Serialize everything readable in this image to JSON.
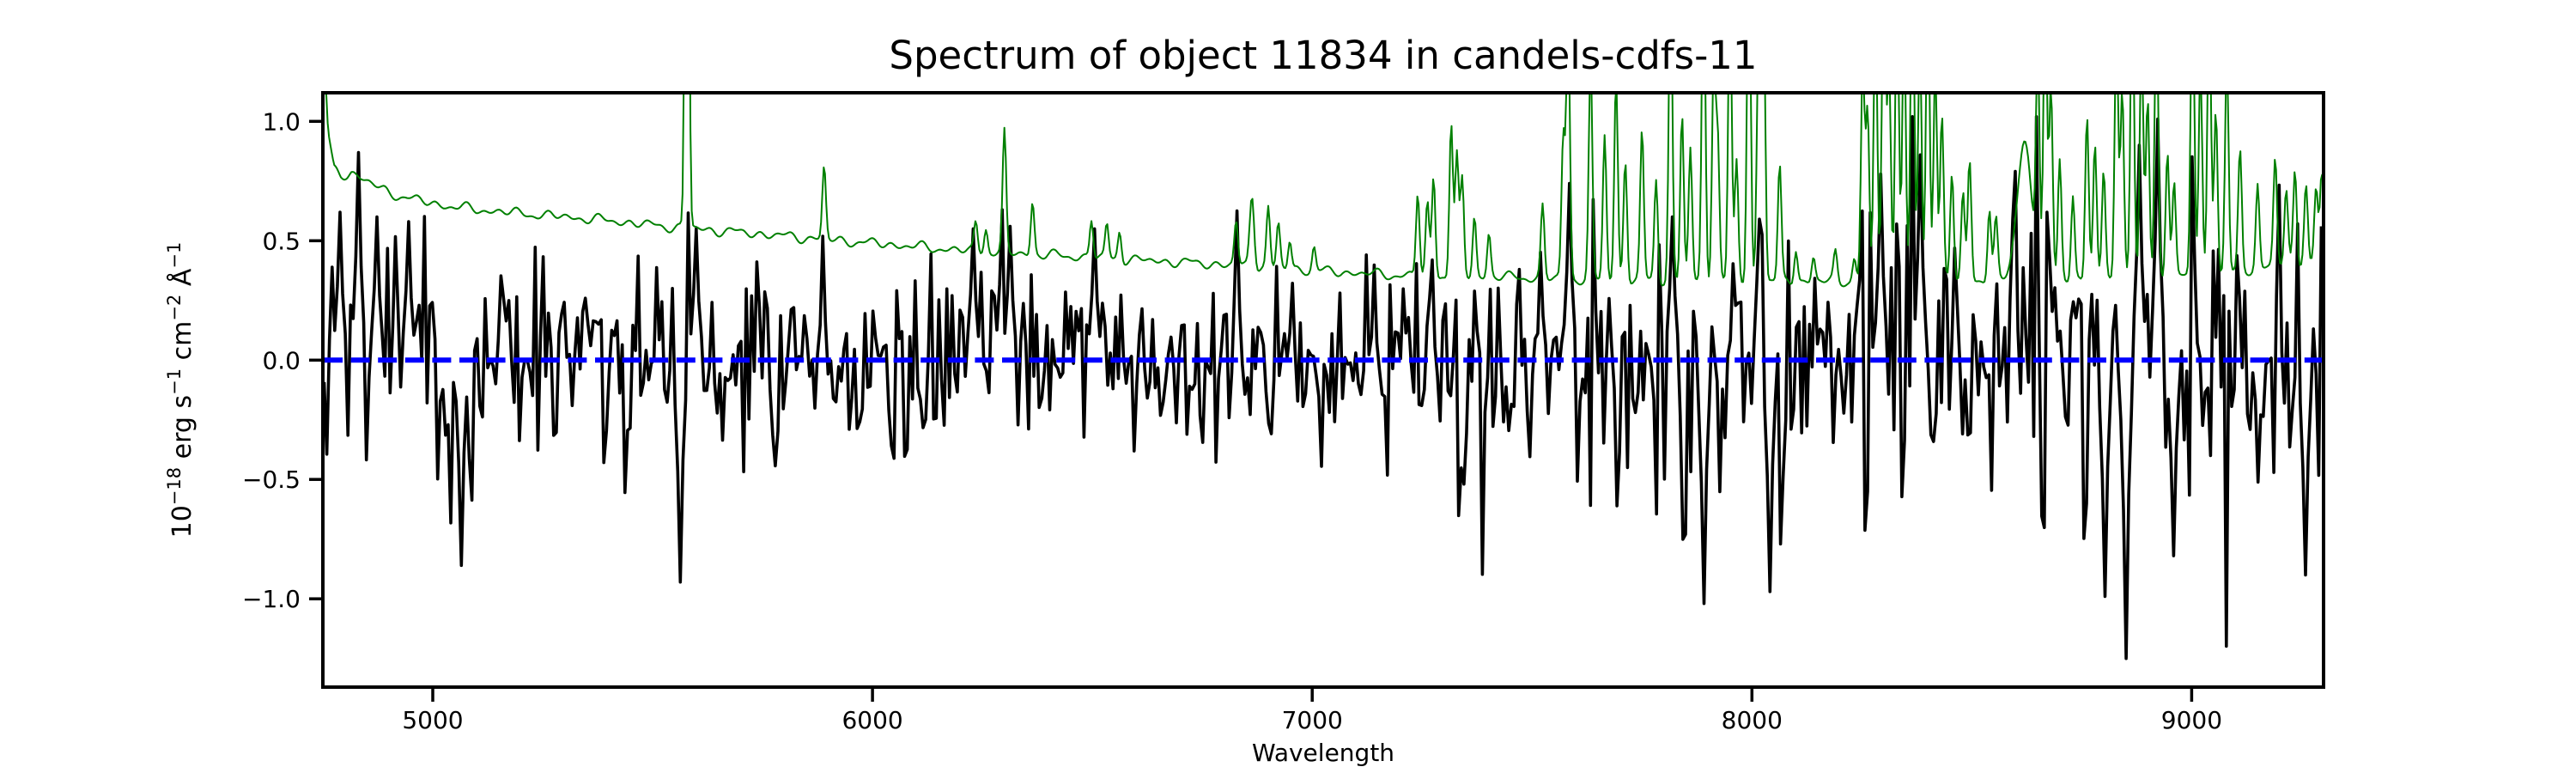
{
  "chart_data": {
    "type": "line",
    "title": "Spectrum of object 11834 in candels-cdfs-11",
    "xlabel": "Wavelength",
    "ylabel": "10−18 erg s−1 cm−2 Å−1",
    "ylabel_segments": [
      {
        "t": "10",
        "sup": false
      },
      {
        "t": "−18",
        "sup": true
      },
      {
        "t": " erg s",
        "sup": false
      },
      {
        "t": "−1",
        "sup": true
      },
      {
        "t": " cm",
        "sup": false
      },
      {
        "t": "−2",
        "sup": true
      },
      {
        "t": " Å",
        "sup": false
      },
      {
        "t": "−1",
        "sup": true
      }
    ],
    "xlim": [
      4750,
      9300
    ],
    "ylim": [
      -1.37,
      1.12
    ],
    "xticks": [
      5000,
      6000,
      7000,
      8000,
      9000
    ],
    "xtick_labels": [
      "5000",
      "6000",
      "7000",
      "8000",
      "9000"
    ],
    "yticks": [
      1.0,
      0.5,
      0.0,
      -0.5,
      -1.0
    ],
    "ytick_labels": [
      "1.0",
      "0.5",
      "0.0",
      "−0.5",
      "−1.0"
    ],
    "grid": false,
    "legend": null,
    "background": "#ffffff",
    "series": [
      {
        "name": "object-flux-spectrum",
        "role": "noisy flux spectrum of object 11834 (zero-mean noise, amplitude grows toward red / sky lines)",
        "color": "#000000",
        "line_width": 3.6,
        "sample_step_angstrom": 6,
        "noise_seed": 20241834,
        "mean": 0.0,
        "noise_sigma_anchors": [
          [
            4755,
            0.27
          ],
          [
            5000,
            0.24
          ],
          [
            5300,
            0.22
          ],
          [
            5600,
            0.22
          ],
          [
            6000,
            0.21
          ],
          [
            6400,
            0.19
          ],
          [
            6800,
            0.17
          ],
          [
            7100,
            0.16
          ],
          [
            7300,
            0.2
          ],
          [
            7600,
            0.22
          ],
          [
            8000,
            0.24
          ],
          [
            8300,
            0.26
          ],
          [
            8600,
            0.26
          ],
          [
            8900,
            0.3
          ],
          [
            9100,
            0.28
          ],
          [
            9300,
            0.26
          ]
        ],
        "sky_coupling": 0.9,
        "clamp": [
          -1.28,
          1.02
        ],
        "pinned_points": [
          [
            4790,
            0.62
          ],
          [
            4830,
            0.87
          ],
          [
            4872,
            0.6
          ],
          [
            4942,
            0.58
          ],
          [
            5065,
            -0.86
          ],
          [
            5562,
            -0.93
          ],
          [
            5600,
            0.55
          ],
          [
            6230,
            0.55
          ],
          [
            6292,
            0.63
          ],
          [
            6312,
            0.56
          ],
          [
            6505,
            0.55
          ],
          [
            7583,
            0.74
          ],
          [
            7820,
            0.6
          ],
          [
            7893,
            -1.02
          ],
          [
            8040,
            -0.97
          ],
          [
            8290,
            0.78
          ],
          [
            8382,
            0.86
          ],
          [
            8803,
            -0.99
          ],
          [
            8851,
            -1.25
          ],
          [
            8880,
            0.9
          ],
          [
            8925,
            1.01
          ],
          [
            8960,
            -0.82
          ],
          [
            9260,
            -0.9
          ]
        ]
      },
      {
        "name": "sky-noise-spectrum",
        "role": "sky / error spectrum: smooth declining continuum plus telluric & OH emission-line spikes (clipped at top of axes)",
        "color": "#008000",
        "line_width": 2,
        "sample_step_angstrom": 3,
        "wiggle_seed": 7,
        "wiggle": {
          "amplitude": 0.009,
          "periods": [
            37,
            61,
            103
          ]
        },
        "continuum_anchors": [
          [
            4750,
            1.4
          ],
          [
            4762,
            0.95
          ],
          [
            4775,
            0.8
          ],
          [
            4790,
            0.77
          ],
          [
            4815,
            0.79
          ],
          [
            4830,
            0.77
          ],
          [
            4900,
            0.7
          ],
          [
            5000,
            0.655
          ],
          [
            5100,
            0.63
          ],
          [
            5200,
            0.615
          ],
          [
            5300,
            0.6
          ],
          [
            5400,
            0.585
          ],
          [
            5500,
            0.565
          ],
          [
            5600,
            0.55
          ],
          [
            5700,
            0.535
          ],
          [
            5800,
            0.52
          ],
          [
            5900,
            0.505
          ],
          [
            6000,
            0.49
          ],
          [
            6100,
            0.475
          ],
          [
            6200,
            0.46
          ],
          [
            6300,
            0.45
          ],
          [
            6400,
            0.44
          ],
          [
            6500,
            0.43
          ],
          [
            6600,
            0.42
          ],
          [
            6700,
            0.41
          ],
          [
            6800,
            0.4
          ],
          [
            6900,
            0.39
          ],
          [
            7000,
            0.375
          ],
          [
            7100,
            0.365
          ],
          [
            7200,
            0.355
          ],
          [
            7400,
            0.35
          ],
          [
            7600,
            0.34
          ],
          [
            7800,
            0.335
          ],
          [
            8000,
            0.33
          ],
          [
            8200,
            0.33
          ],
          [
            8400,
            0.335
          ],
          [
            8600,
            0.34
          ],
          [
            8800,
            0.34
          ],
          [
            9000,
            0.35
          ],
          [
            9100,
            0.37
          ],
          [
            9200,
            0.4
          ],
          [
            9300,
            0.42
          ]
        ],
        "emission_spikes": [
          [
            5578,
            3.0,
            4
          ],
          [
            5890,
            0.3,
            4
          ],
          [
            6235,
            0.12,
            4
          ],
          [
            6258,
            0.1,
            4
          ],
          [
            6300,
            0.5,
            4
          ],
          [
            6364,
            0.22,
            4
          ],
          [
            6498,
            0.16,
            4
          ],
          [
            6533,
            0.14,
            4
          ],
          [
            6562,
            0.12,
            4
          ],
          [
            6827,
            0.18,
            4
          ],
          [
            6863,
            0.3,
            5
          ],
          [
            6900,
            0.25,
            4
          ],
          [
            6923,
            0.18,
            4
          ],
          [
            6949,
            0.12,
            4
          ],
          [
            7004,
            0.1,
            4
          ],
          [
            7240,
            0.35,
            4
          ],
          [
            7262,
            0.3,
            4
          ],
          [
            7276,
            0.42,
            4
          ],
          [
            7316,
            0.65,
            4
          ],
          [
            7329,
            0.5,
            4
          ],
          [
            7341,
            0.4,
            4
          ],
          [
            7369,
            0.25,
            4
          ],
          [
            7402,
            0.18,
            4
          ],
          [
            7524,
            0.3,
            4
          ],
          [
            7571,
            0.6,
            4
          ],
          [
            7582,
            1.1,
            4
          ],
          [
            7633,
            0.9,
            4
          ],
          [
            7665,
            0.6,
            4
          ],
          [
            7691,
            0.85,
            4
          ],
          [
            7712,
            0.5,
            4
          ],
          [
            7750,
            0.62,
            4
          ],
          [
            7782,
            0.42,
            4
          ],
          [
            7815,
            1.3,
            4
          ],
          [
            7841,
            0.7,
            4
          ],
          [
            7860,
            0.55,
            4
          ],
          [
            7890,
            1.4,
            4
          ],
          [
            7913,
            0.9,
            4
          ],
          [
            7922,
            0.6,
            4
          ],
          [
            7950,
            1.2,
            4
          ],
          [
            7965,
            0.5,
            4
          ],
          [
            7993,
            1.5,
            4
          ],
          [
            8015,
            1.0,
            4
          ],
          [
            8026,
            1.3,
            4
          ],
          [
            8063,
            0.48,
            4
          ],
          [
            8100,
            0.14,
            4
          ],
          [
            8140,
            0.1,
            4
          ],
          [
            8190,
            0.12,
            4
          ],
          [
            8233,
            0.1,
            4
          ],
          [
            8252,
            0.9,
            4
          ],
          [
            8263,
            0.7,
            4
          ],
          [
            8281,
            1.2,
            4
          ],
          [
            8300,
            1.5,
            4
          ],
          [
            8312,
            0.9,
            4
          ],
          [
            8330,
            1.3,
            4
          ],
          [
            8346,
            1.1,
            4
          ],
          [
            8365,
            1.4,
            4
          ],
          [
            8382,
            1.0,
            4
          ],
          [
            8400,
            1.3,
            4
          ],
          [
            8417,
            0.9,
            4
          ],
          [
            8432,
            0.7,
            4
          ],
          [
            8455,
            0.45,
            4
          ],
          [
            8480,
            0.35,
            4
          ],
          [
            8495,
            0.5,
            4
          ],
          [
            8540,
            0.3,
            4
          ],
          [
            8555,
            0.25,
            4
          ],
          [
            8620,
            0.58,
            16
          ],
          [
            8650,
            0.9,
            4
          ],
          [
            8667,
            1.2,
            4
          ],
          [
            8680,
            0.8,
            4
          ],
          [
            8700,
            0.5,
            4
          ],
          [
            8730,
            0.35,
            4
          ],
          [
            8762,
            0.7,
            4
          ],
          [
            8780,
            0.55,
            4
          ],
          [
            8800,
            0.45,
            4
          ],
          [
            8829,
            1.1,
            4
          ],
          [
            8842,
            0.8,
            4
          ],
          [
            8865,
            1.3,
            4
          ],
          [
            8886,
            1.0,
            4
          ],
          [
            8900,
            0.75,
            4
          ],
          [
            8920,
            1.2,
            4
          ],
          [
            8945,
            0.55,
            4
          ],
          [
            8960,
            0.4,
            4
          ],
          [
            9002,
            1.3,
            4
          ],
          [
            9020,
            0.9,
            4
          ],
          [
            9040,
            1.2,
            4
          ],
          [
            9055,
            0.7,
            4
          ],
          [
            9080,
            0.9,
            4
          ],
          [
            9110,
            0.5,
            4
          ],
          [
            9150,
            0.35,
            4
          ],
          [
            9190,
            0.45,
            4
          ],
          [
            9215,
            0.3,
            4
          ],
          [
            9235,
            0.4,
            4
          ],
          [
            9260,
            0.33,
            4
          ],
          [
            9283,
            0.3,
            4
          ],
          [
            9296,
            0.35,
            4
          ]
        ]
      },
      {
        "name": "zero-flux-line",
        "role": "dashed horizontal reference line at zero flux",
        "color": "#0000ff",
        "line_width": 6,
        "dash": [
          22,
          9.6
        ],
        "y": 0.0
      }
    ]
  }
}
